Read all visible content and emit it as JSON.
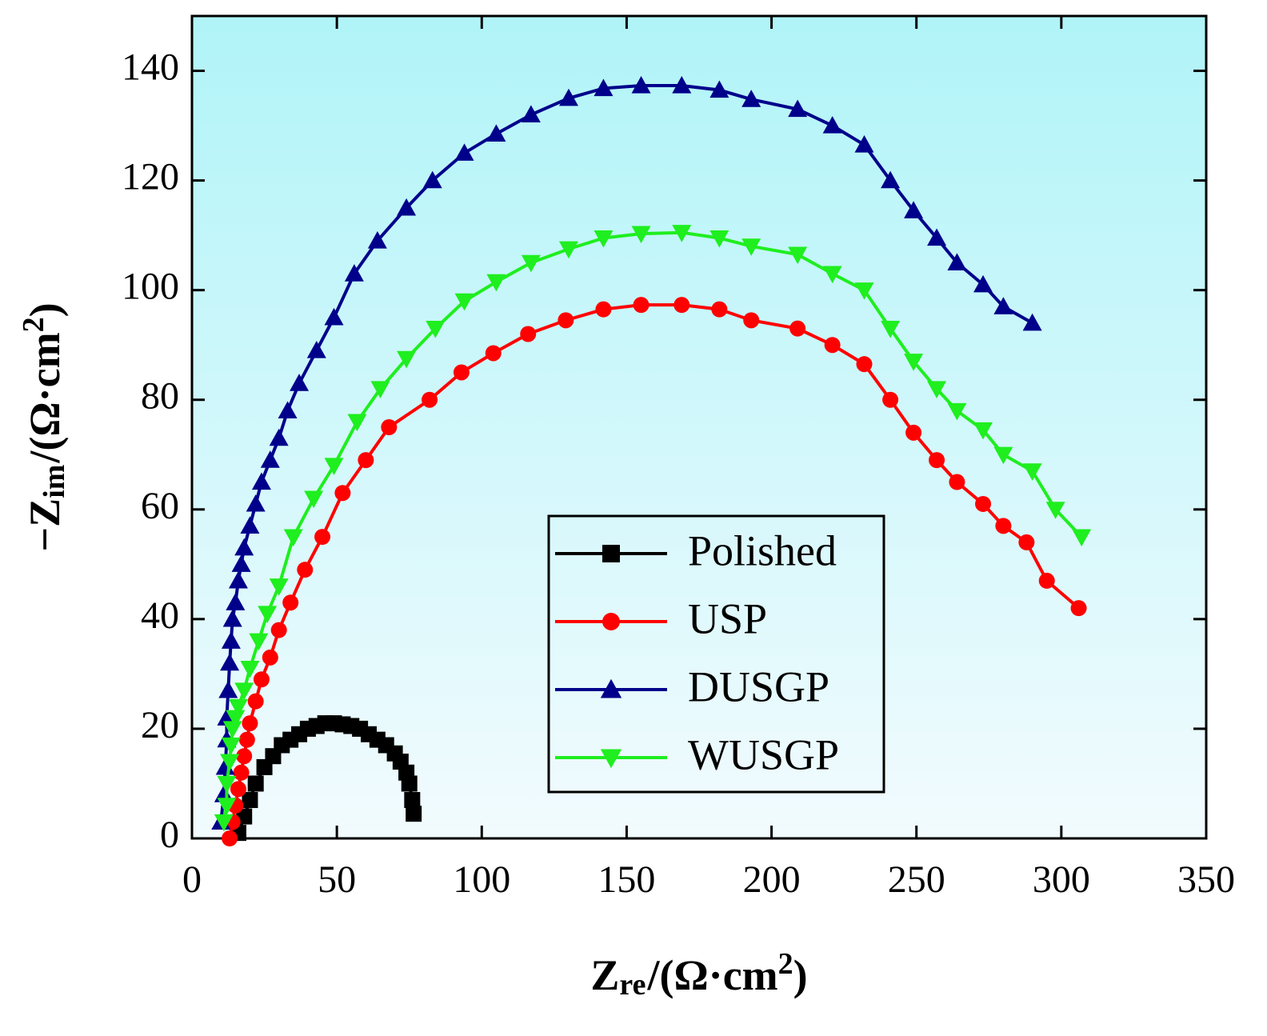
{
  "chart_data": {
    "type": "scatter-line",
    "xlabel": [
      "Z",
      "re",
      "/(Ω·cm",
      "2",
      ")"
    ],
    "ylabel": [
      "−Z",
      "im",
      "/(Ω·cm",
      "2",
      ")"
    ],
    "xlim": [
      0,
      350
    ],
    "xticks": [
      0,
      50,
      100,
      150,
      200,
      250,
      300,
      350
    ],
    "ylim": [
      0,
      150
    ],
    "yticks": [
      0,
      20,
      40,
      60,
      80,
      100,
      120,
      140
    ],
    "legend": "lower right",
    "series": [
      {
        "name": "Polished",
        "color": "#000000",
        "marker": "square",
        "x": [
          16,
          18,
          20,
          22,
          25,
          28,
          31,
          34,
          37,
          40,
          43,
          46,
          49,
          52,
          55,
          58,
          61,
          64,
          67,
          70,
          72,
          74,
          75,
          76,
          76.5
        ],
        "values": [
          1,
          4,
          7,
          10,
          13,
          15,
          17,
          18,
          19,
          20,
          20.5,
          21,
          21,
          20.8,
          20.5,
          20,
          19,
          18,
          17,
          15.5,
          14,
          12,
          10,
          7,
          4.5
        ]
      },
      {
        "name": "USP",
        "color": "#ff0000",
        "marker": "circle",
        "x": [
          13,
          14,
          15,
          16,
          17,
          18,
          19,
          20,
          22,
          24,
          27,
          30,
          34,
          39,
          45,
          52,
          60,
          68,
          82,
          93,
          104,
          116,
          129,
          142,
          155,
          169,
          182,
          193,
          209,
          221,
          232,
          241,
          249,
          257,
          264,
          273,
          280,
          288,
          295,
          306
        ],
        "values": [
          0,
          3,
          6,
          9,
          12,
          15,
          18,
          21,
          25,
          29,
          33,
          38,
          43,
          49,
          55,
          63,
          69,
          75,
          80,
          85,
          88.5,
          92,
          94.5,
          96.5,
          97.3,
          97.3,
          96.5,
          94.5,
          93,
          90,
          86.5,
          80,
          74,
          69,
          65,
          61,
          57,
          54,
          47,
          42
        ]
      },
      {
        "name": "DUSGP",
        "color": "#00008b",
        "marker": "triangle-up",
        "x": [
          10,
          11,
          11.5,
          12,
          12,
          12.5,
          13,
          13.5,
          14,
          15,
          16,
          17,
          18,
          20,
          22,
          24,
          27,
          30,
          33,
          37,
          43,
          49,
          56,
          64,
          74,
          83,
          94,
          105,
          117,
          130,
          142,
          155,
          169,
          182,
          193,
          209,
          221,
          232,
          241,
          249,
          257,
          264,
          273,
          280,
          290
        ],
        "values": [
          3,
          8,
          13,
          18,
          22,
          27,
          32,
          36,
          40,
          43,
          47,
          50,
          53,
          57,
          61,
          65,
          69,
          73,
          78,
          83,
          89,
          95,
          103,
          109,
          115,
          120,
          125,
          128.5,
          132,
          135,
          136.8,
          137.3,
          137.3,
          136.5,
          134.8,
          133,
          130,
          126.5,
          120,
          114.5,
          109.5,
          105,
          101,
          97,
          94
        ]
      },
      {
        "name": "WUSGP",
        "color": "#1fee1f",
        "marker": "triangle-down",
        "x": [
          11,
          12,
          12,
          13,
          13.5,
          14,
          15,
          16,
          18,
          20,
          23,
          26,
          30,
          35,
          42,
          49,
          57,
          65,
          74,
          84,
          94,
          105,
          117,
          130,
          142,
          155,
          169,
          182,
          193,
          209,
          221,
          232,
          241,
          249,
          257,
          264,
          273,
          280,
          290,
          298,
          307
        ],
        "values": [
          3,
          6,
          10,
          14,
          17,
          20,
          22,
          24,
          27,
          31,
          36,
          41,
          46,
          55,
          62,
          68,
          76,
          82,
          87.5,
          93,
          98,
          101.5,
          105,
          107.5,
          109.5,
          110.3,
          110.5,
          109.5,
          108,
          106.5,
          103,
          100,
          93,
          87,
          82,
          78,
          74.5,
          70,
          67,
          60,
          55
        ]
      }
    ]
  }
}
